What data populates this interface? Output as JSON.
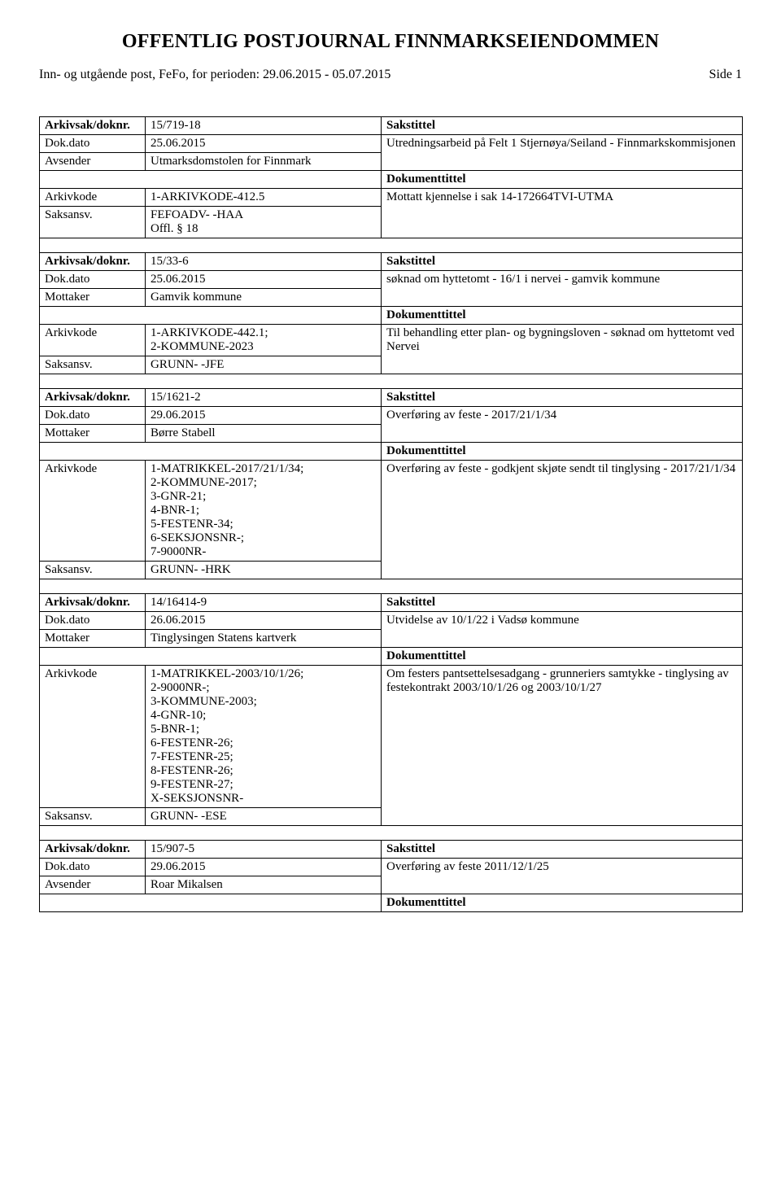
{
  "page": {
    "title": "OFFENTLIG POSTJOURNAL FINNMARKSEIENDOMMEN",
    "subtitle": "Inn- og utgående post, FeFo, for perioden: 29.06.2015 - 05.07.2015",
    "page_label": "Side 1"
  },
  "labels": {
    "arkivsak": "Arkivsak/doknr.",
    "dokdato": "Dok.dato",
    "avsender": "Avsender",
    "mottaker": "Mottaker",
    "arkivkode": "Arkivkode",
    "saksansv": "Saksansv.",
    "sakstittel": "Sakstittel",
    "dokumenttittel": "Dokumenttittel"
  },
  "records": [
    {
      "arkivsak": "15/719-18",
      "dokdato": "25.06.2015",
      "party_label": "Avsender",
      "party": "Utmarksdomstolen for Finnmark",
      "arkivkode": "1-ARKIVKODE-412.5",
      "saksansv": "FEFOADV- -HAA\nOffl. § 18",
      "sakstittel": "Utredningsarbeid på Felt 1 Stjernøya/Seiland - Finnmarkskommisjonen",
      "dokumenttittel": "Mottatt kjennelse i sak 14-172664TVI-UTMA"
    },
    {
      "arkivsak": "15/33-6",
      "dokdato": "25.06.2015",
      "party_label": "Mottaker",
      "party": "Gamvik kommune",
      "arkivkode": "1-ARKIVKODE-442.1;\n2-KOMMUNE-2023",
      "saksansv": "GRUNN- -JFE",
      "sakstittel": "søknad om hyttetomt - 16/1 i nervei - gamvik kommune",
      "dokumenttittel": "Til behandling etter plan- og bygningsloven - søknad om hyttetomt ved Nervei"
    },
    {
      "arkivsak": "15/1621-2",
      "dokdato": "29.06.2015",
      "party_label": "Mottaker",
      "party": "Børre Stabell",
      "arkivkode": "1-MATRIKKEL-2017/21/1/34;\n2-KOMMUNE-2017;\n3-GNR-21;\n4-BNR-1;\n5-FESTENR-34;\n6-SEKSJONSNR-;\n7-9000NR-",
      "saksansv": "GRUNN- -HRK",
      "sakstittel": "Overføring av feste - 2017/21/1/34",
      "dokumenttittel": "Overføring av feste - godkjent skjøte sendt til tinglysing - 2017/21/1/34"
    },
    {
      "arkivsak": "14/16414-9",
      "dokdato": "26.06.2015",
      "party_label": "Mottaker",
      "party": "Tinglysingen Statens kartverk",
      "arkivkode": "1-MATRIKKEL-2003/10/1/26;\n2-9000NR-;\n3-KOMMUNE-2003;\n4-GNR-10;\n5-BNR-1;\n6-FESTENR-26;\n7-FESTENR-25;\n8-FESTENR-26;\n9-FESTENR-27;\nX-SEKSJONSNR-",
      "saksansv": "GRUNN- -ESE",
      "sakstittel": "Utvidelse av 10/1/22 i Vadsø kommune",
      "dokumenttittel": "Om festers pantsettelsesadgang - grunneriers samtykke - tinglysing av festekontrakt 2003/10/1/26 og 2003/10/1/27"
    },
    {
      "arkivsak": "15/907-5",
      "dokdato": "29.06.2015",
      "party_label": "Avsender",
      "party": "Roar  Mikalsen",
      "arkivkode": "",
      "saksansv": "",
      "sakstittel": "Overføring av feste 2011/12/1/25",
      "dokumenttittel": "",
      "truncated": true
    }
  ]
}
